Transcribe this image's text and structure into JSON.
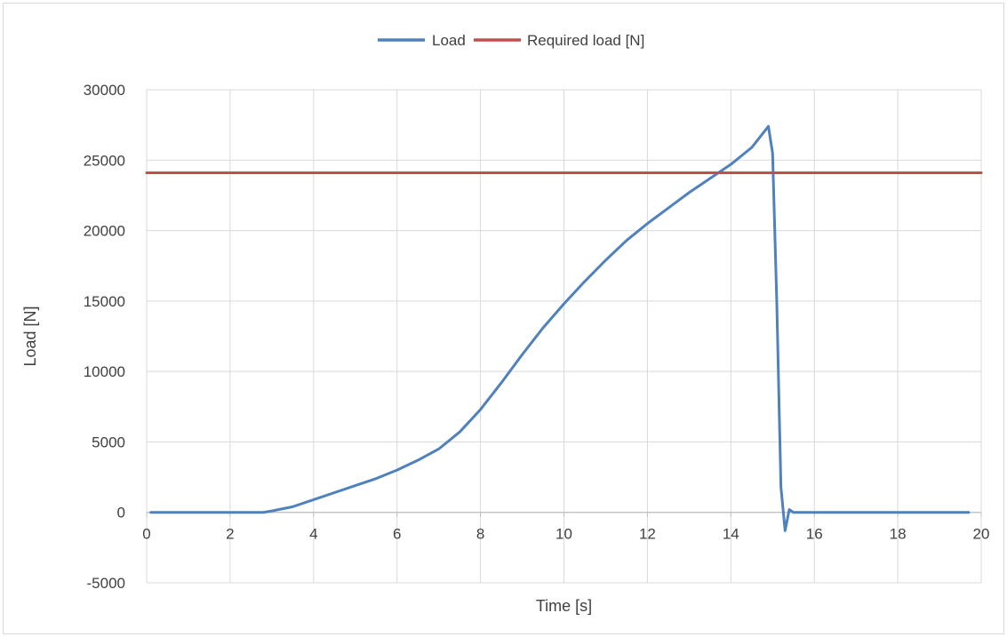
{
  "chart_data": {
    "type": "line",
    "xlabel": "Time [s]",
    "ylabel": "Load [N]",
    "xlim": [
      0,
      20
    ],
    "ylim": [
      -5000,
      30000
    ],
    "x_ticks": [
      0,
      2,
      4,
      6,
      8,
      10,
      12,
      14,
      16,
      18,
      20
    ],
    "y_ticks": [
      -5000,
      0,
      5000,
      10000,
      15000,
      20000,
      25000,
      30000
    ],
    "grid": true,
    "legend_position": "top-center",
    "series": [
      {
        "name": "Load",
        "color": "#4F81BD",
        "x": [
          0.1,
          1.0,
          2.0,
          2.8,
          3.0,
          3.5,
          4.0,
          4.5,
          5.0,
          5.5,
          6.0,
          6.5,
          7.0,
          7.5,
          8.0,
          8.5,
          9.0,
          9.5,
          10.0,
          10.5,
          11.0,
          11.5,
          12.0,
          12.5,
          13.0,
          13.5,
          14.0,
          14.5,
          14.9,
          15.0,
          15.1,
          15.2,
          15.3,
          15.4,
          15.5,
          16.0,
          17.0,
          18.0,
          19.0,
          19.7
        ],
        "y": [
          0,
          0,
          0,
          0,
          100,
          400,
          900,
          1400,
          1900,
          2400,
          3000,
          3700,
          4500,
          5700,
          7300,
          9200,
          11200,
          13100,
          14800,
          16400,
          17900,
          19300,
          20500,
          21600,
          22700,
          23700,
          24700,
          25900,
          27400,
          25500,
          15000,
          1800,
          -1300,
          200,
          0,
          0,
          0,
          0,
          0,
          0
        ]
      },
      {
        "name": "Required load [N]",
        "color": "#C0504D",
        "x": [
          0,
          20
        ],
        "y": [
          24100,
          24100
        ]
      }
    ]
  }
}
